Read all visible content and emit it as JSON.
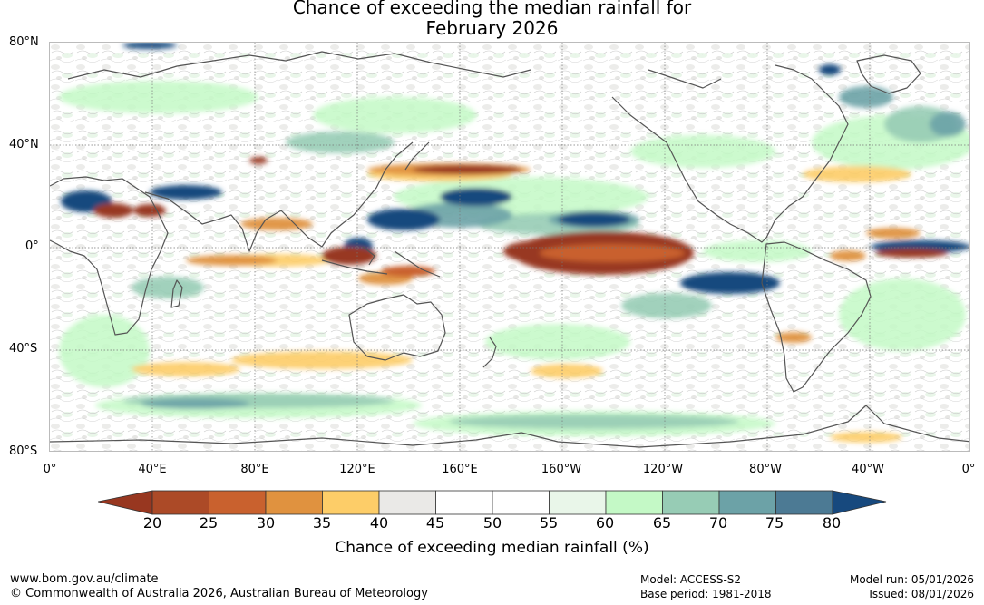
{
  "title_line1": "Chance of exceeding the median rainfall for",
  "title_line2": "February 2026",
  "lat_labels": [
    "80°N",
    "40°N",
    "0°",
    "40°S",
    "80°S"
  ],
  "lon_labels": [
    "0°",
    "40°E",
    "80°E",
    "120°E",
    "160°E",
    "160°W",
    "120°W",
    "80°W",
    "40°W",
    "0°"
  ],
  "colorbar": {
    "ticks": [
      "20",
      "25",
      "30",
      "35",
      "40",
      "45",
      "50",
      "55",
      "60",
      "65",
      "70",
      "75",
      "80"
    ],
    "colors": [
      "#ac4a27",
      "#c9612e",
      "#e0923f",
      "#fdcd68",
      "#eae9e7",
      "#ffffff",
      "#ffffff",
      "#e9f6e9",
      "#c4f9c6",
      "#97ccb5",
      "#6ca2a7",
      "#4c7a94"
    ],
    "low_color": "#983720",
    "high_color": "#17497e",
    "title": "Chance of exceeding median rainfall (%)"
  },
  "footer": {
    "url": "www.bom.gov.au/climate",
    "copyright": "© Commonwealth of Australia 2026, Australian Bureau of Meteorology",
    "model": "Model: ACCESS-S2",
    "base_period": "Base period: 1981-2018",
    "model_run": "Model run: 05/01/2026",
    "issued": "Issued: 08/01/2026"
  }
}
